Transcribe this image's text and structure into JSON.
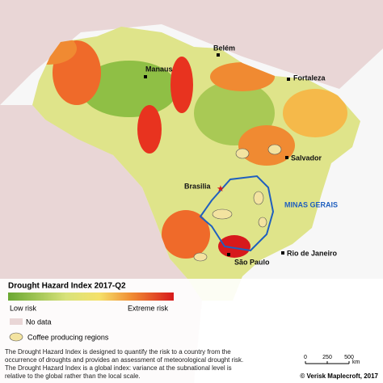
{
  "map": {
    "cities": [
      "Manaus",
      "Belém",
      "Fortaleza",
      "Salvador",
      "Brasilia",
      "Rio de Janeiro",
      "São Paulo"
    ],
    "region_label": "MINAS GERAIS"
  },
  "legend": {
    "title": "Drought Hazard Index 2017-Q2",
    "low": "Low risk",
    "high": "Extreme risk",
    "no_data": "No data",
    "coffee": "Coffee producing regions"
  },
  "footnote": [
    "The Drought Hazard Index is designed to quantify the risk to a country from the",
    "occurrence of droughts and provides an assessment of meteorological drought risk.",
    "The Drought Hazard Index is a global index: variance at the subnational level is",
    "relative to the global rather than the local scale."
  ],
  "scale_bar": {
    "ticks": [
      0,
      250,
      500
    ],
    "unit": "km"
  },
  "credit": "© Verisk Maplecroft, 2017"
}
